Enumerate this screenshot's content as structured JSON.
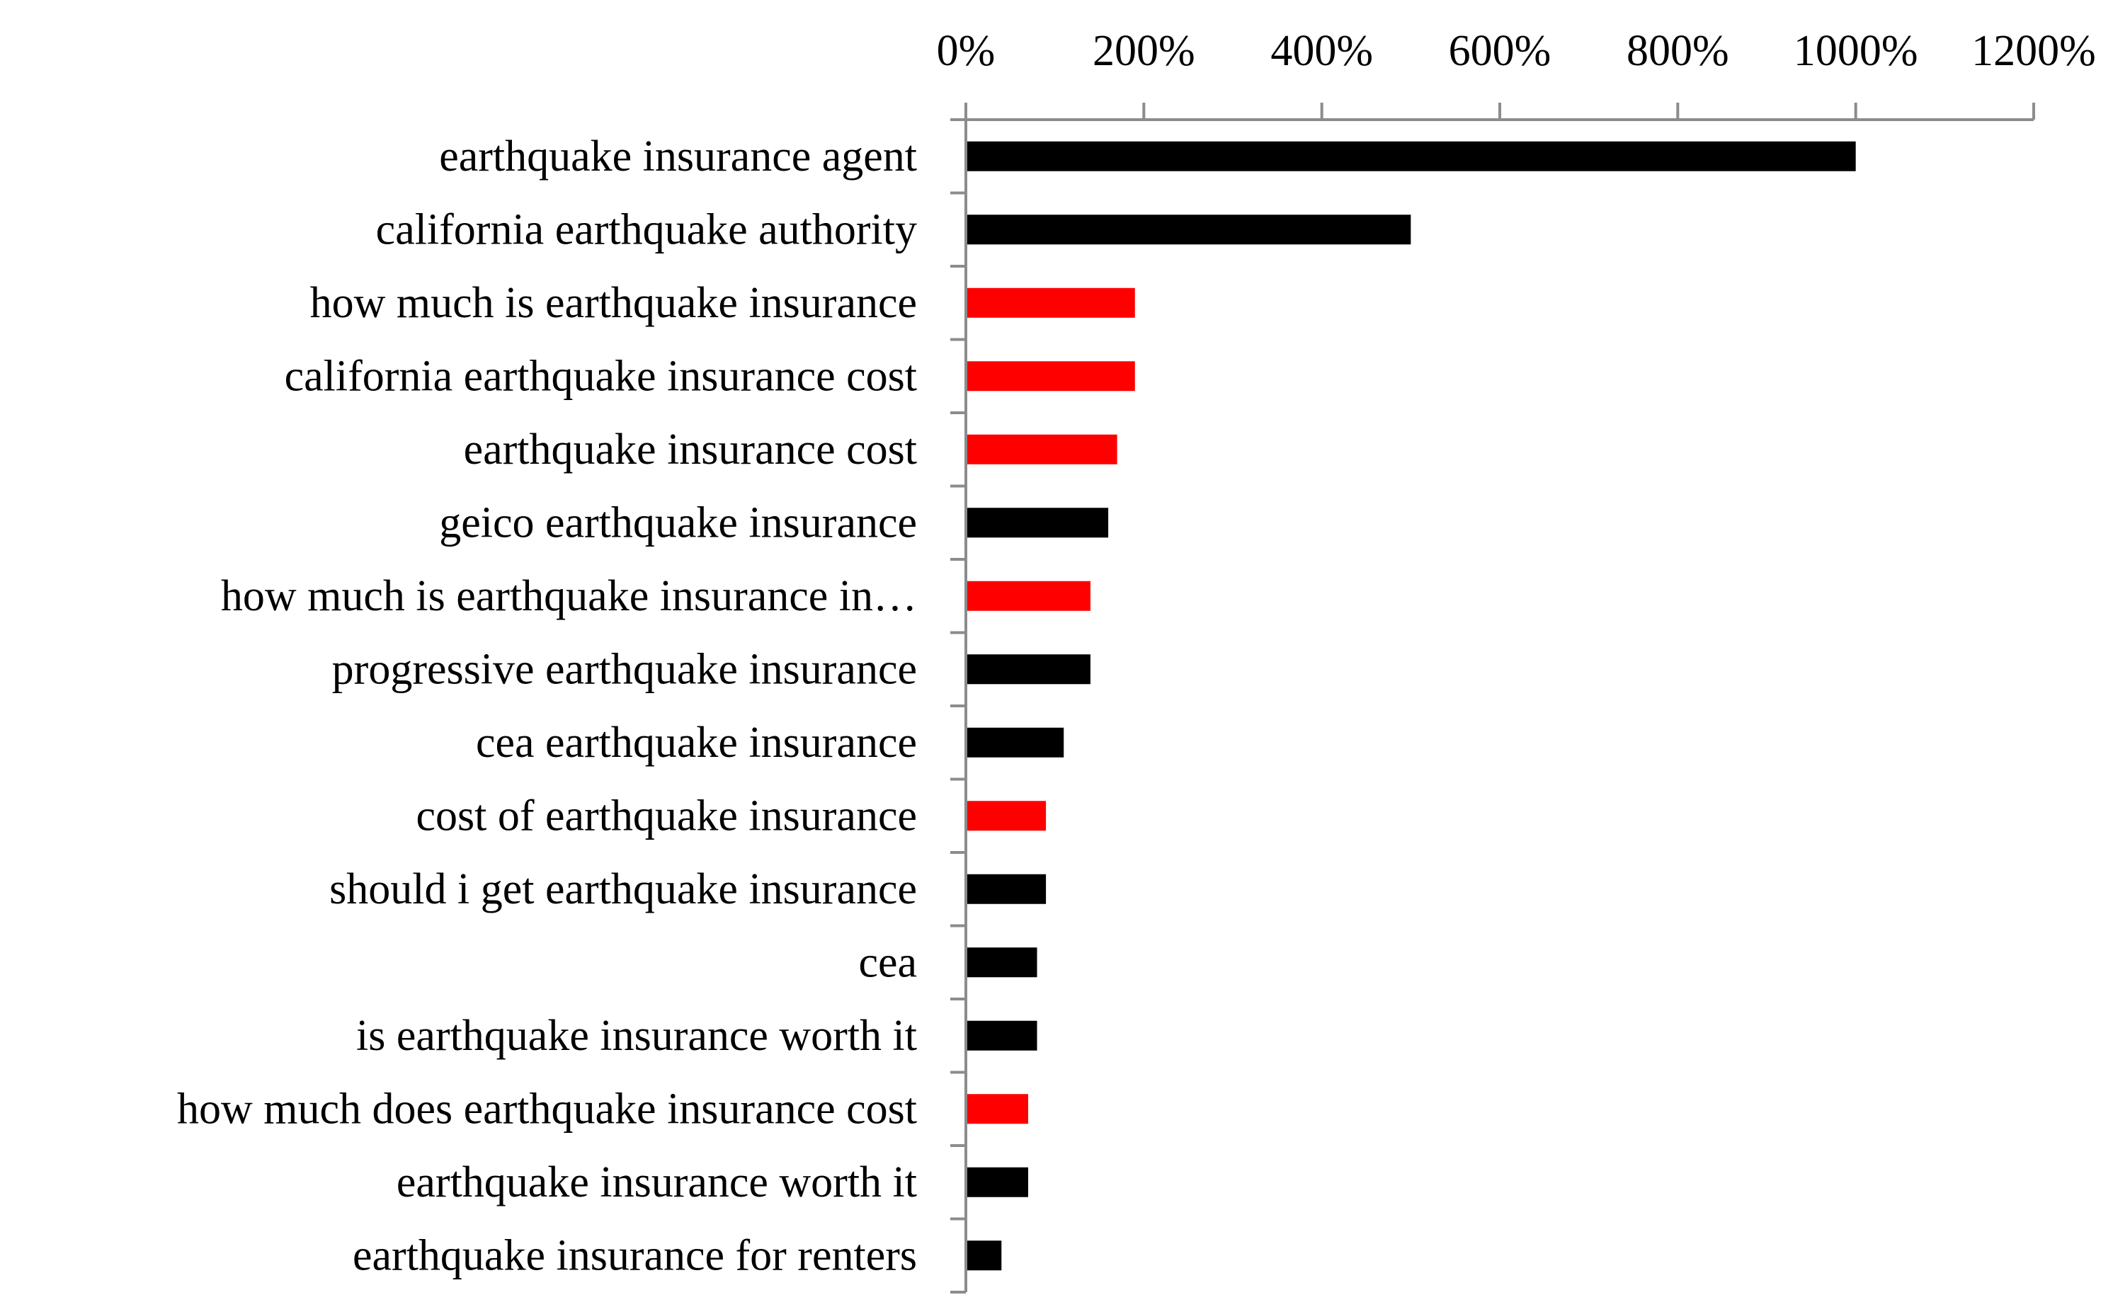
{
  "colors": {
    "default_bar": "#000000",
    "highlight_bar": "#ff0000"
  },
  "chart_data": {
    "type": "bar",
    "orientation": "horizontal",
    "title": "",
    "xlabel": "",
    "ylabel": "",
    "xlim": [
      0,
      1200
    ],
    "ticks": [
      0,
      200,
      400,
      600,
      800,
      1000,
      1200
    ],
    "tick_labels": [
      "0%",
      "200%",
      "400%",
      "600%",
      "800%",
      "1000%",
      "1200%"
    ],
    "axis_position": "top",
    "grid": false,
    "legend": "none",
    "categories": [
      "earthquake insurance agent",
      "california earthquake authority",
      "how much is earthquake insurance",
      "california earthquake insurance cost",
      "earthquake insurance cost",
      "geico earthquake insurance",
      "how much is earthquake insurance in…",
      "progressive earthquake insurance",
      "cea earthquake insurance",
      "cost of earthquake insurance",
      "should i get earthquake insurance",
      "cea",
      "is earthquake insurance worth it",
      "how much does earthquake insurance cost",
      "earthquake insurance worth it",
      "earthquake insurance for renters"
    ],
    "values": [
      1000,
      500,
      190,
      190,
      170,
      160,
      140,
      140,
      110,
      90,
      90,
      80,
      80,
      70,
      70,
      40
    ],
    "highlighted": [
      false,
      false,
      true,
      true,
      true,
      false,
      true,
      false,
      false,
      true,
      false,
      false,
      false,
      true,
      false,
      false
    ]
  }
}
